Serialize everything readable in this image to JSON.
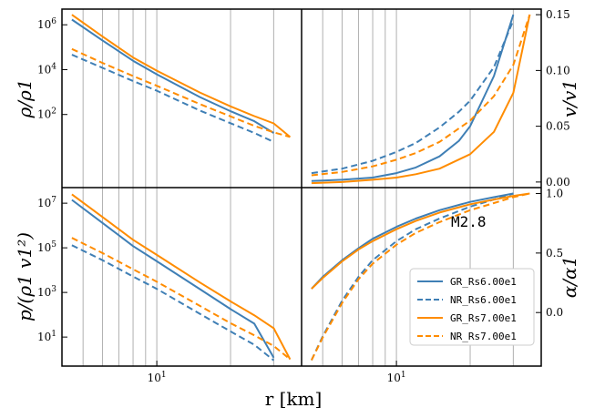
{
  "chart_data": {
    "type": "line",
    "layout": "2x2 grid, shared x axis (log scale, r in km)",
    "xlabel": "r [km]",
    "x_tick_label": "10^1",
    "annotation": "M2.8",
    "legend": {
      "location": "lower-right of bottom-right panel",
      "entries": [
        "GR_Rs6.00e1",
        "NR_Rs6.00e1",
        "GR_Rs7.00e1",
        "NR_Rs7.00e1"
      ]
    },
    "colors": {
      "blue": "#3f7fb5",
      "orange": "#ff8c00",
      "grid": "#b0b0b0"
    },
    "series_styles": [
      {
        "name": "GR_Rs6.00e1",
        "color": "#3f7fb5",
        "dash": "solid"
      },
      {
        "name": "NR_Rs6.00e1",
        "color": "#3f7fb5",
        "dash": "dashed"
      },
      {
        "name": "GR_Rs7.00e1",
        "color": "#ff8c00",
        "dash": "solid"
      },
      {
        "name": "NR_Rs7.00e1",
        "color": "#ff8c00",
        "dash": "dashed"
      }
    ],
    "panels": [
      {
        "id": "density",
        "ylabel": "ρ/ρ1",
        "yscale": "log",
        "ylim": [
          0.055,
          5000000
        ],
        "yticks": [
          100,
          10000,
          1000000
        ],
        "ytick_labels": [
          "10^2",
          "10^4",
          "10^6"
        ],
        "series": [
          {
            "name": "GR_Rs6.00e1",
            "x": [
              4.5,
              6,
              8,
              10,
              15,
              20,
              25,
              30
            ],
            "y": [
              1700000,
              200000,
              25000,
              6200,
              600,
              140,
              50,
              15
            ]
          },
          {
            "name": "NR_Rs6.00e1",
            "x": [
              4.5,
              6,
              8,
              10,
              15,
              20,
              25,
              30
            ],
            "y": [
              46000,
              12000,
              3100,
              1150,
              150,
              41,
              15,
              6
            ]
          },
          {
            "name": "GR_Rs7.00e1",
            "x": [
              4.5,
              6,
              8,
              10,
              15,
              20,
              25,
              30,
              35
            ],
            "y": [
              2800000,
              300000,
              35000,
              9000,
              950,
              230,
              85,
              40,
              10
            ]
          },
          {
            "name": "NR_Rs7.00e1",
            "x": [
              4.5,
              6,
              8,
              10,
              15,
              20,
              25,
              30,
              35
            ],
            "y": [
              83000,
              20000,
              5200,
              1900,
              290,
              82,
              31,
              16,
              10
            ]
          }
        ]
      },
      {
        "id": "velocity",
        "ylabel": "v/v1",
        "yscale": "linear",
        "ylim": [
          -0.005,
          0.155
        ],
        "yticks": [
          0.0,
          0.05,
          0.1,
          0.15
        ],
        "ytick_labels": [
          "0.00",
          "0.05",
          "0.10",
          "0.15"
        ],
        "y_axis_side": "right",
        "series": [
          {
            "name": "GR_Rs6.00e1",
            "x": [
              4.5,
              6,
              8,
              10,
              12,
              15,
              18,
              20,
              25,
              30
            ],
            "y": [
              0.001,
              0.002,
              0.004,
              0.008,
              0.013,
              0.023,
              0.037,
              0.05,
              0.095,
              0.15
            ]
          },
          {
            "name": "NR_Rs6.00e1",
            "x": [
              4.5,
              6,
              8,
              10,
              12,
              15,
              18,
              20,
              25,
              30
            ],
            "y": [
              0.008,
              0.012,
              0.019,
              0.027,
              0.035,
              0.049,
              0.063,
              0.073,
              0.103,
              0.145
            ]
          },
          {
            "name": "GR_Rs7.00e1",
            "x": [
              4.5,
              6,
              8,
              10,
              12,
              15,
              20,
              25,
              30,
              35
            ],
            "y": [
              -0.001,
              0.0,
              0.002,
              0.004,
              0.007,
              0.012,
              0.025,
              0.045,
              0.08,
              0.15
            ]
          },
          {
            "name": "NR_Rs7.00e1",
            "x": [
              4.5,
              6,
              8,
              10,
              12,
              15,
              20,
              25,
              30,
              35
            ],
            "y": [
              0.006,
              0.009,
              0.014,
              0.02,
              0.026,
              0.036,
              0.055,
              0.077,
              0.105,
              0.15
            ]
          }
        ]
      },
      {
        "id": "pressure",
        "ylabel": "p/(ρ1 v1²)",
        "yscale": "log",
        "ylim": [
          0.5,
          50000000
        ],
        "yticks": [
          10,
          1000,
          100000,
          10000000
        ],
        "ytick_labels": [
          "10^1",
          "10^3",
          "10^5",
          "10^7"
        ],
        "series": [
          {
            "name": "GR_Rs6.00e1",
            "x": [
              4.5,
              6,
              8,
              10,
              15,
              20,
              25,
              30
            ],
            "y": [
              14000000,
              1300000,
              120000,
              25000,
              1400,
              180,
              40,
              1.2
            ]
          },
          {
            "name": "NR_Rs6.00e1",
            "x": [
              4.5,
              6,
              8,
              10,
              15,
              20,
              25,
              30
            ],
            "y": [
              130000,
              28000,
              5200,
              1450,
              110,
              18,
              4.5,
              0.9
            ]
          },
          {
            "name": "GR_Rs7.00e1",
            "x": [
              4.5,
              6,
              8,
              10,
              15,
              20,
              25,
              30,
              35
            ],
            "y": [
              25000000,
              2400000,
              230000,
              48000,
              2800,
              400,
              95,
              25,
              1.0
            ]
          },
          {
            "name": "NR_Rs7.00e1",
            "x": [
              4.5,
              6,
              8,
              10,
              15,
              20,
              25,
              30,
              35
            ],
            "y": [
              280000,
              58000,
              11000,
              3000,
              250,
              42,
              12,
              4,
              1.0
            ]
          }
        ]
      },
      {
        "id": "lapse",
        "ylabel": "α/α1",
        "yscale": "linear",
        "ylim": [
          -0.45,
          1.05
        ],
        "yticks": [
          0.0,
          0.5,
          1.0
        ],
        "ytick_labels": [
          "0.0",
          "0.5",
          "1.0"
        ],
        "y_axis_side": "right",
        "series": [
          {
            "name": "GR_Rs6.00e1",
            "x": [
              4.5,
              5,
              6,
              7,
              8,
              10,
              12,
              15,
              20,
              25,
              30
            ],
            "y": [
              0.2,
              0.3,
              0.44,
              0.54,
              0.62,
              0.72,
              0.79,
              0.86,
              0.93,
              0.97,
              1.0
            ]
          },
          {
            "name": "NR_Rs6.00e1",
            "x": [
              4.5,
              5,
              6,
              7,
              8,
              10,
              12,
              15,
              20,
              25,
              30
            ],
            "y": [
              -0.4,
              -0.2,
              0.1,
              0.3,
              0.44,
              0.6,
              0.7,
              0.79,
              0.89,
              0.95,
              1.0
            ]
          },
          {
            "name": "GR_Rs7.00e1",
            "x": [
              4.5,
              5,
              6,
              7,
              8,
              10,
              12,
              15,
              20,
              25,
              30,
              35
            ],
            "y": [
              0.2,
              0.29,
              0.43,
              0.53,
              0.6,
              0.7,
              0.77,
              0.84,
              0.91,
              0.95,
              0.98,
              1.0
            ]
          },
          {
            "name": "NR_Rs7.00e1",
            "x": [
              4.5,
              5,
              6,
              7,
              8,
              10,
              12,
              15,
              20,
              25,
              30,
              35
            ],
            "y": [
              -0.4,
              -0.21,
              0.08,
              0.28,
              0.41,
              0.57,
              0.67,
              0.76,
              0.86,
              0.92,
              0.97,
              1.0
            ]
          }
        ]
      }
    ]
  }
}
